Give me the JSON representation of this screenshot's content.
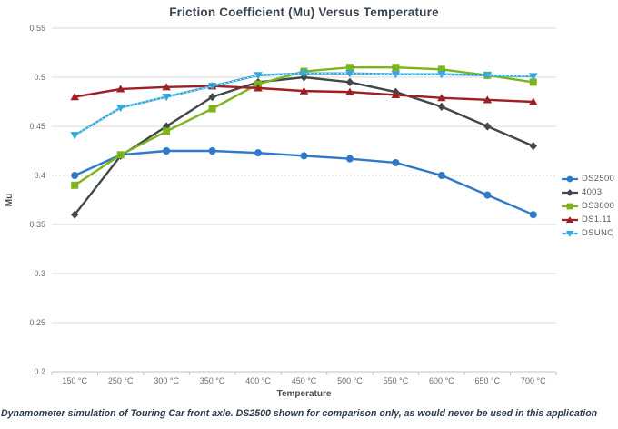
{
  "title": "Friction Coefficient (Mu) Versus Temperature",
  "footer": "Dynamometer simulation of Touring Car front axle. DS2500 shown for comparison only, as would never be used in this application",
  "chart_data": {
    "type": "line",
    "title": "Friction Coefficient (Mu) Versus Temperature",
    "xlabel": "Temperature",
    "ylabel": "Mu",
    "ylim": [
      0.2,
      0.55
    ],
    "ytick_step": 0.05,
    "yticks": [
      0.55,
      0.5,
      0.45,
      0.4,
      0.35,
      0.3,
      0.25,
      0.2
    ],
    "grid": "horizontal",
    "dashed_gridline_at": 0.4,
    "legend_position": "right",
    "categories": [
      "150 °C",
      "250 °C",
      "300 °C",
      "350 °C",
      "400 °C",
      "450 °C",
      "500 °C",
      "550 °C",
      "600 °C",
      "650 °C",
      "700 °C"
    ],
    "series": [
      {
        "name": "DS2500",
        "color": "#2e7ac8",
        "marker": "circle",
        "values": [
          0.4,
          0.421,
          0.425,
          0.425,
          0.423,
          0.42,
          0.417,
          0.413,
          0.4,
          0.38,
          0.36
        ]
      },
      {
        "name": "4003",
        "color": "#41474d",
        "marker": "diamond",
        "values": [
          0.36,
          0.42,
          0.45,
          0.48,
          0.495,
          0.5,
          0.495,
          0.485,
          0.47,
          0.45,
          0.43
        ]
      },
      {
        "name": "DS3000",
        "color": "#7db41c",
        "marker": "square",
        "values": [
          0.39,
          0.421,
          0.445,
          0.468,
          0.493,
          0.506,
          0.51,
          0.51,
          0.508,
          0.502,
          0.495
        ]
      },
      {
        "name": "DS1.11",
        "color": "#9e2022",
        "marker": "triangle-up",
        "values": [
          0.48,
          0.488,
          0.49,
          0.491,
          0.489,
          0.486,
          0.485,
          0.482,
          0.479,
          0.477,
          0.475
        ]
      },
      {
        "name": "DSUNO",
        "color": "#35a9dc",
        "marker": "triangle-down",
        "line_style": "dotted-center",
        "values": [
          0.441,
          0.469,
          0.48,
          0.491,
          0.502,
          0.504,
          0.504,
          0.503,
          0.503,
          0.502,
          0.501
        ]
      }
    ]
  },
  "colors": {
    "grid": "#d9d9d9",
    "grid_dashed": "#c9c9c9",
    "axis": "#c2c2c2",
    "tick_text": "#6d6d6d",
    "axis_title_text": "#474c50",
    "title_text": "#39434d",
    "footer_text": "#2c3a49",
    "legend_text": "#555a5e"
  }
}
